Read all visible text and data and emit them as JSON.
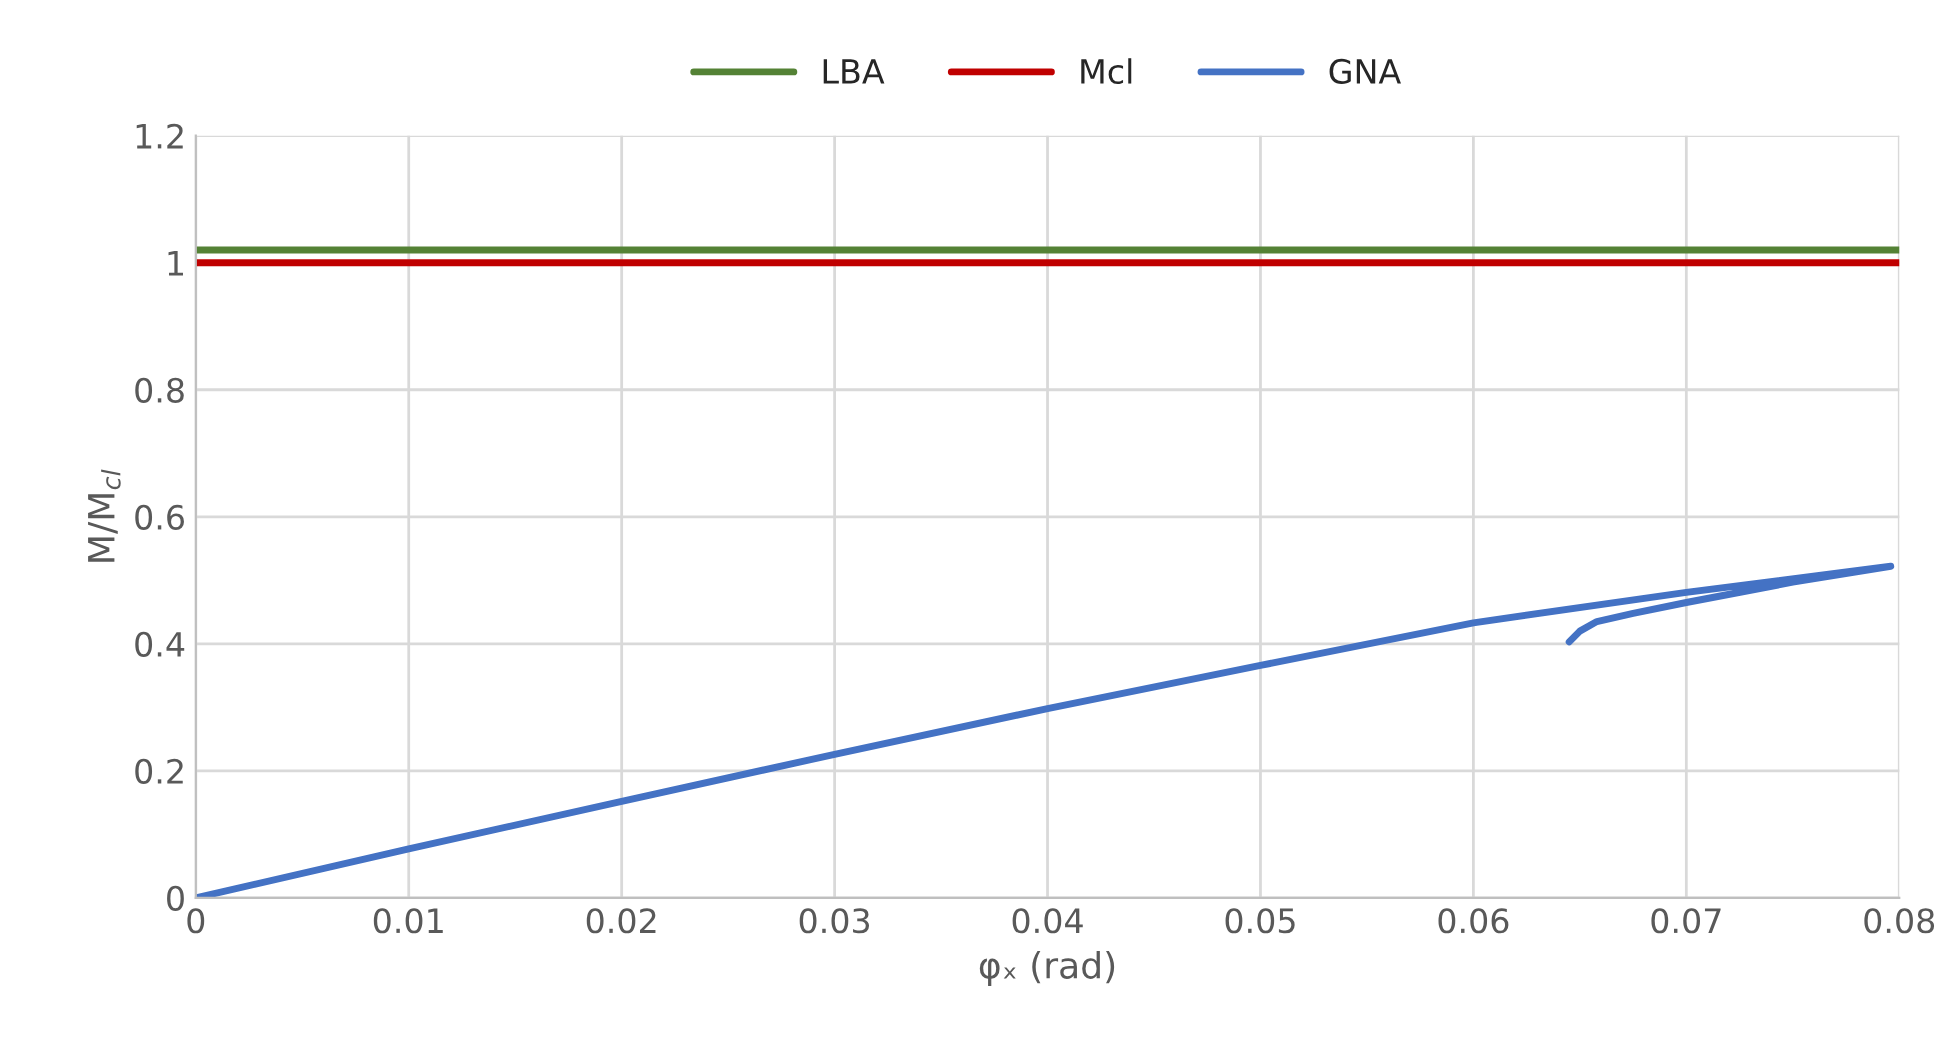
{
  "chart_data": {
    "type": "line",
    "xlabel": "φₓ (rad)",
    "ylabel": "M/M$_{cl}$",
    "xlim": [
      0,
      0.08
    ],
    "xticks": [
      0,
      0.01,
      0.02,
      0.03,
      0.04,
      0.05,
      0.06,
      0.07,
      0.08
    ],
    "ylim": [
      0,
      1.2
    ],
    "yticks": [
      0,
      0.2,
      0.4,
      0.6,
      0.8,
      1,
      1.2
    ],
    "grid": true,
    "legend": "top",
    "marker": "none",
    "line_style": "solid",
    "series": [
      {
        "name": "LBA",
        "color": "#548235",
        "x": [
          0,
          0.08
        ],
        "values": [
          1.02,
          1.02
        ]
      },
      {
        "name": "Mcl",
        "color": "#c00000",
        "x": [
          0,
          0.08
        ],
        "values": [
          1.0,
          1.0
        ]
      },
      {
        "name": "GNA",
        "color": "#4472c4",
        "x": [
          0,
          0.01,
          0.02,
          0.03,
          0.04,
          0.05,
          0.06,
          0.07,
          0.0796,
          0.075,
          0.07,
          0.0675,
          0.0658,
          0.065,
          0.0645
        ],
        "values": [
          0,
          0.077,
          0.152,
          0.226,
          0.298,
          0.366,
          0.433,
          0.481,
          0.522,
          0.497,
          0.465,
          0.448,
          0.435,
          0.42,
          0.403
        ]
      }
    ]
  }
}
